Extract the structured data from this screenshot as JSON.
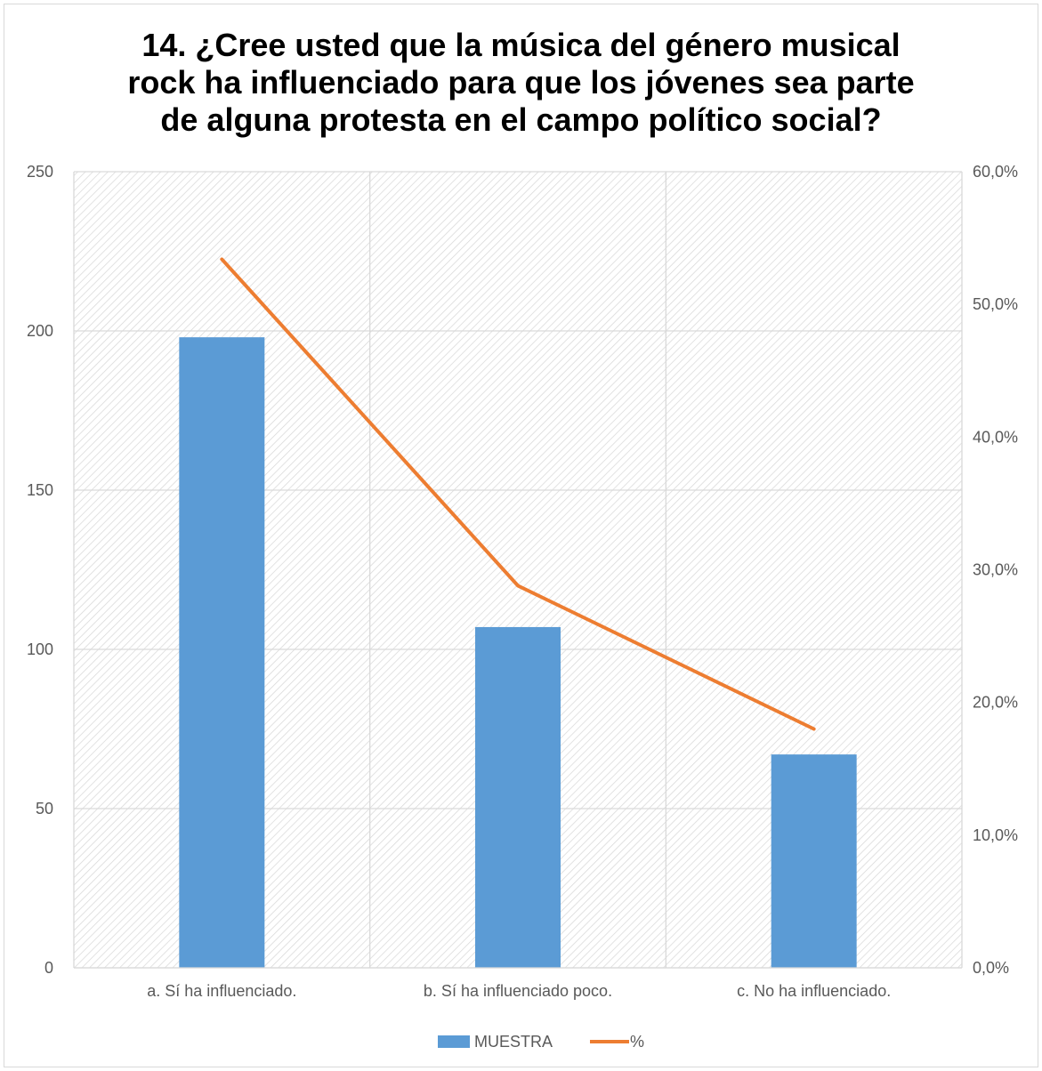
{
  "chart_data": {
    "type": "bar",
    "title_lines": [
      "14. ¿Cree usted que la música del género musical",
      "rock ha influenciado para que los jóvenes sea parte",
      "de alguna protesta en el campo político social?"
    ],
    "categories": [
      "a. Sí ha influenciado.",
      "b. Sí ha influenciado poco.",
      "c. No ha influenciado."
    ],
    "series": [
      {
        "name": "MUESTRA",
        "type": "bar",
        "axis": "left",
        "color": "#5b9bd5",
        "values": [
          198,
          107,
          67
        ]
      },
      {
        "name": "%",
        "type": "line",
        "axis": "right",
        "color": "#ed7d31",
        "values": [
          53.4,
          28.8,
          18.0
        ]
      }
    ],
    "ylim": [
      0,
      250
    ],
    "y_ticks": [
      "0",
      "50",
      "100",
      "150",
      "200",
      "250"
    ],
    "y2lim": [
      0,
      60
    ],
    "y2_ticks": [
      "0,0%",
      "10,0%",
      "20,0%",
      "30,0%",
      "40,0%",
      "50,0%",
      "60,0%"
    ],
    "grid": true,
    "legend_position": "bottom",
    "plot_background": "hatched-gray"
  }
}
